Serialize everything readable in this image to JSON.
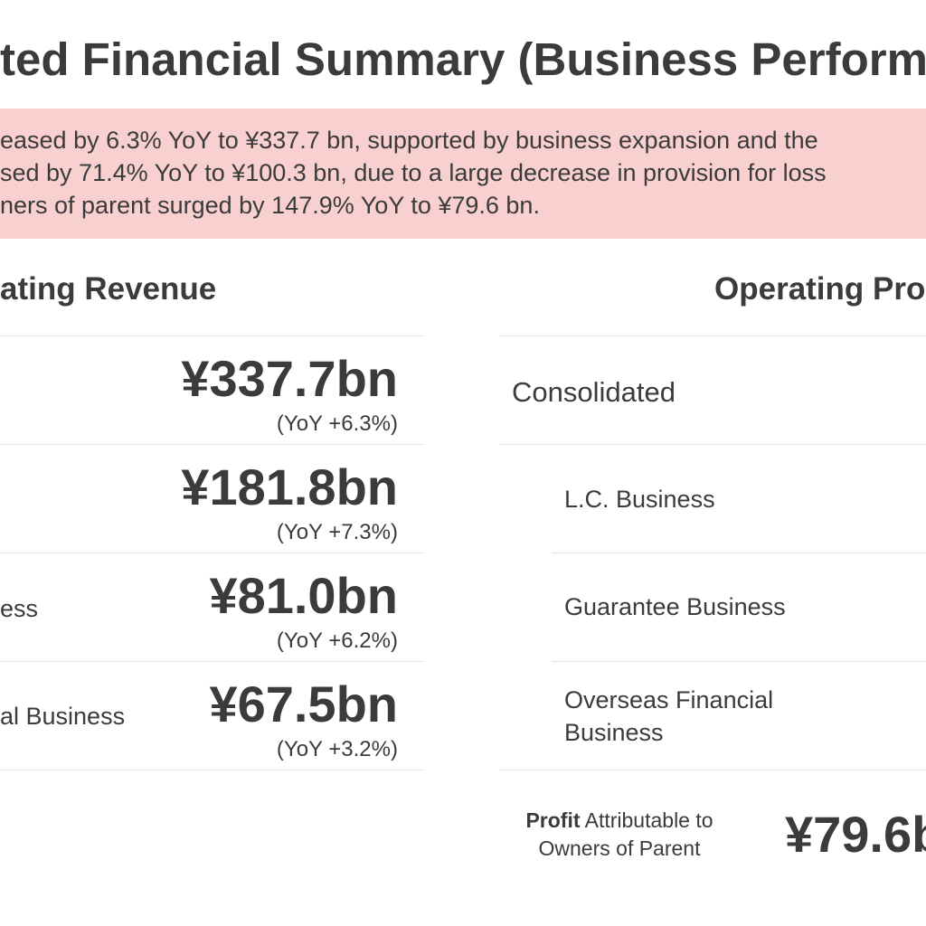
{
  "title": "ted Financial Summary (Business Perform",
  "banner": {
    "lines": [
      "eased by 6.3% YoY to ¥337.7 bn, supported by business expansion and the",
      "sed by 71.4% YoY to ¥100.3 bn, due to a large decrease in provision for loss",
      "ners of parent surged by 147.9% YoY to ¥79.6 bn."
    ]
  },
  "revenue": {
    "title": "ating Revenue",
    "rows": [
      {
        "label": "",
        "value": "¥337.7bn",
        "yoy": "(YoY +6.3%)"
      },
      {
        "label": "",
        "value": "¥181.8bn",
        "yoy": "(YoY +7.3%)"
      },
      {
        "label": "ess",
        "value": "¥81.0bn",
        "yoy": "(YoY +6.2%)"
      },
      {
        "label": "al Business",
        "value": "¥67.5bn",
        "yoy": "(YoY +3.2%)"
      }
    ]
  },
  "profit": {
    "title": "Operating Pro",
    "rows": [
      {
        "label": "Consolidated"
      },
      {
        "label": "L.C. Business"
      },
      {
        "label": "Guarantee Business"
      },
      {
        "label": "Overseas Financial Business"
      }
    ],
    "attributable": {
      "label_bold": "Profit",
      "label_rest": " Attributable to Owners of Parent",
      "value": "¥79.6b"
    }
  }
}
